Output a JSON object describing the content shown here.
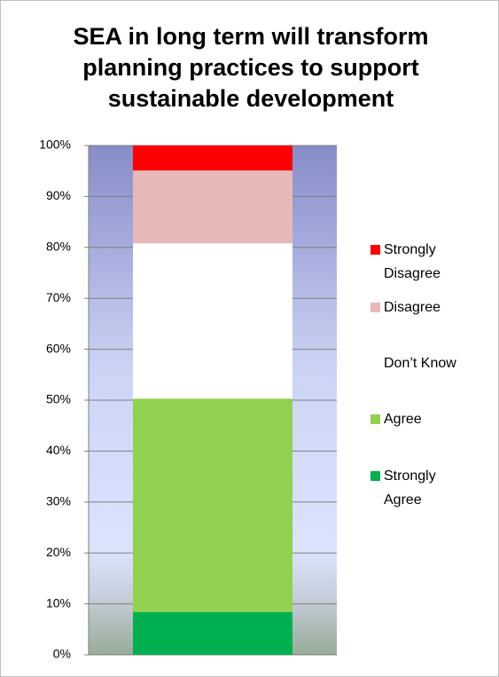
{
  "chart_data": {
    "type": "stacked_bar",
    "title": "SEA in long term will transform planning practices to support sustainable development",
    "categories": [
      null
    ],
    "series": [
      {
        "name": "Strongly Agree",
        "color": "#00b050",
        "values": [
          8.4
        ]
      },
      {
        "name": "Agree",
        "color": "#92d050",
        "values": [
          41.9
        ]
      },
      {
        "name": "Don’t Know",
        "color": "#ffffff",
        "values": [
          30.5
        ]
      },
      {
        "name": "Disagree",
        "color": "#e6b9b8",
        "values": [
          14.3
        ]
      },
      {
        "name": "Strongly Disagree",
        "color": "#ff0000",
        "values": [
          4.9
        ]
      }
    ],
    "ylim": [
      0,
      100
    ],
    "yticks": [
      {
        "value": 0,
        "label": "0%"
      },
      {
        "value": 10,
        "label": "10%"
      },
      {
        "value": 20,
        "label": "20%"
      },
      {
        "value": 30,
        "label": "30%"
      },
      {
        "value": 40,
        "label": "40%"
      },
      {
        "value": 50,
        "label": "50%"
      },
      {
        "value": 60,
        "label": "60%"
      },
      {
        "value": 70,
        "label": "70%"
      },
      {
        "value": 80,
        "label": "80%"
      },
      {
        "value": 90,
        "label": "90%"
      },
      {
        "value": 100,
        "label": "100%"
      }
    ],
    "grid": true,
    "legend": "right"
  }
}
